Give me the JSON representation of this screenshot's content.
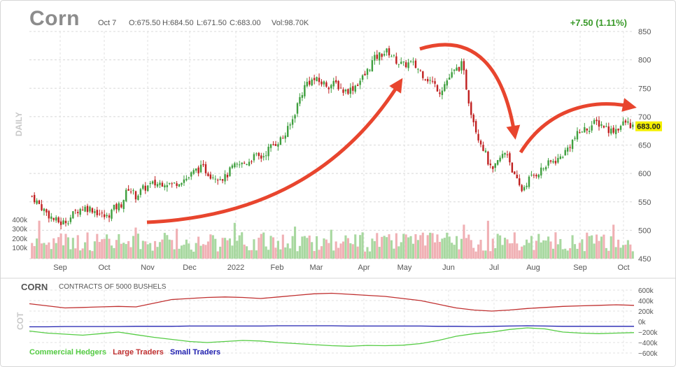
{
  "header": {
    "symbol": "Corn",
    "date": "Oct 7",
    "open": "O:675.50",
    "high": "H:684.50",
    "low": "L:671.50",
    "close": "C:683.00",
    "volume": "Vol:98.70K",
    "change": "+7.50 (1.11%)"
  },
  "labels": {
    "daily": "DAILY",
    "cot": "COT",
    "cot_symbol": "CORN",
    "cot_subtitle": "CONTRACTS OF 5000 BUSHELS"
  },
  "colors": {
    "up": "#3f9f3f",
    "down": "#c02020",
    "vol_up": "#a8d8a0",
    "vol_down": "#f0b0b4",
    "commercial": "#55cc44",
    "large": "#c03030",
    "small": "#2020b0",
    "arrow": "#e8452e",
    "last_price_badge": "#f4f000"
  },
  "chart_data": [
    {
      "type": "candlestick",
      "title": "Corn",
      "y_axis_position": "right",
      "ylim": [
        450,
        850
      ],
      "yticks": [
        "850",
        "800",
        "750",
        "700",
        "650",
        "600",
        "550",
        "500",
        "450"
      ],
      "x_tick_labels": [
        "Sep",
        "Oct",
        "Nov",
        "Dec",
        "2022",
        "Feb",
        "Mar",
        "Apr",
        "May",
        "Jun",
        "Jul",
        "Aug",
        "Sep",
        "Oct"
      ],
      "last_price": "683.00",
      "close_path": [
        [
          "Aug 30",
          560
        ],
        [
          "Sep 5",
          545
        ],
        [
          "Sep 10",
          530
        ],
        [
          "Sep 15",
          518
        ],
        [
          "Sep 20",
          512
        ],
        [
          "Sep 25",
          520
        ],
        [
          "Oct 1",
          535
        ],
        [
          "Oct 5",
          540
        ],
        [
          "Oct 10",
          538
        ],
        [
          "Oct 15",
          530
        ],
        [
          "Oct 20",
          522
        ],
        [
          "Oct 25",
          538
        ],
        [
          "Oct 30",
          545
        ],
        [
          "Nov 5",
          575
        ],
        [
          "Nov 10",
          560
        ],
        [
          "Nov 15",
          573
        ],
        [
          "Nov 20",
          580
        ],
        [
          "Nov 25",
          582
        ],
        [
          "Dec 1",
          585
        ],
        [
          "Dec 6",
          580
        ],
        [
          "Dec 10",
          588
        ],
        [
          "Dec 15",
          592
        ],
        [
          "Dec 20",
          605
        ],
        [
          "Dec 25",
          610
        ],
        [
          "Jan 1",
          598
        ],
        [
          "Jan 6",
          595
        ],
        [
          "Jan 10",
          592
        ],
        [
          "Jan 15",
          610
        ],
        [
          "Jan 20",
          615
        ],
        [
          "Jan 25",
          620
        ],
        [
          "Feb 1",
          630
        ],
        [
          "Feb 5",
          628
        ],
        [
          "Feb 10",
          645
        ],
        [
          "Feb 15",
          655
        ],
        [
          "Feb 20",
          665
        ],
        [
          "Feb 25",
          690
        ],
        [
          "Mar 1",
          730
        ],
        [
          "Mar 5",
          760
        ],
        [
          "Mar 10",
          765
        ],
        [
          "Mar 15",
          760
        ],
        [
          "Mar 20",
          755
        ],
        [
          "Mar 25",
          758
        ],
        [
          "Apr 1",
          745
        ],
        [
          "Apr 5",
          748
        ],
        [
          "Apr 10",
          760
        ],
        [
          "Apr 15",
          775
        ],
        [
          "Apr 20",
          800
        ],
        [
          "Apr 25",
          810
        ],
        [
          "Apr 30",
          815
        ],
        [
          "May 5",
          800
        ],
        [
          "May 10",
          790
        ],
        [
          "May 15",
          795
        ],
        [
          "May 20",
          785
        ],
        [
          "May 25",
          770
        ],
        [
          "Jun 1",
          760
        ],
        [
          "Jun 5",
          745
        ],
        [
          "Jun 10",
          765
        ],
        [
          "Jun 15",
          780
        ],
        [
          "Jun 18",
          792
        ],
        [
          "Jun 25",
          720
        ],
        [
          "Jun 30",
          670
        ],
        [
          "Jul 5",
          640
        ],
        [
          "Jul 10",
          600
        ],
        [
          "Jul 15",
          625
        ],
        [
          "Jul 20",
          640
        ],
        [
          "Jul 25",
          595
        ],
        [
          "Jul 28",
          570
        ],
        [
          "Aug 1",
          590
        ],
        [
          "Aug 5",
          600
        ],
        [
          "Aug 10",
          610
        ],
        [
          "Aug 15",
          620
        ],
        [
          "Aug 20",
          625
        ],
        [
          "Aug 25",
          640
        ],
        [
          "Aug 30",
          660
        ],
        [
          "Sep 5",
          675
        ],
        [
          "Sep 10",
          680
        ],
        [
          "Sep 15",
          690
        ],
        [
          "Sep 20",
          685
        ],
        [
          "Sep 25",
          675
        ],
        [
          "Sep 30",
          680
        ],
        [
          "Oct 3",
          690
        ],
        [
          "Oct 7",
          683
        ]
      ],
      "volume_axis": [
        "400k",
        "300k",
        "200k",
        "100k"
      ],
      "annotations": [
        {
          "type": "arrow",
          "shape": "curve",
          "direction": "up",
          "from": "Nov",
          "to": "Apr"
        },
        {
          "type": "arrow",
          "shape": "curve",
          "direction": "down",
          "from": "May",
          "to": "Jul"
        },
        {
          "type": "arrow",
          "shape": "curve",
          "direction": "right",
          "from": "Aug",
          "to": "Oct"
        }
      ]
    },
    {
      "type": "line",
      "title": "CORN",
      "subtitle": "CONTRACTS OF 5000 BUSHELS",
      "ylim": [
        -600000,
        600000
      ],
      "yticks": [
        "600k",
        "400k",
        "200k",
        "0k",
        "−200k",
        "−400k",
        "−600k"
      ],
      "legend": "bottom-left",
      "series": [
        {
          "name": "Commercial Hedgers",
          "values": [
            -180,
            -220,
            -240,
            -260,
            -230,
            -200,
            -250,
            -300,
            -340,
            -380,
            -400,
            -380,
            -360,
            -370,
            -400,
            -420,
            -440,
            -460,
            -470,
            -455,
            -460,
            -450,
            -420,
            -360,
            -280,
            -230,
            -200,
            -150,
            -120,
            -140,
            -200,
            -220,
            -230,
            -220,
            -210
          ]
        },
        {
          "name": "Large Traders",
          "values": [
            340,
            300,
            260,
            270,
            280,
            290,
            280,
            350,
            420,
            440,
            460,
            470,
            460,
            440,
            470,
            500,
            530,
            540,
            520,
            500,
            480,
            440,
            400,
            330,
            260,
            220,
            200,
            220,
            250,
            270,
            290,
            300,
            310,
            320,
            310
          ]
        },
        {
          "name": "Small Traders",
          "values": [
            -100,
            -100,
            -95,
            -95,
            -95,
            -95,
            -90,
            -90,
            -90,
            -85,
            -85,
            -85,
            -85,
            -85,
            -80,
            -80,
            -80,
            -80,
            -85,
            -85,
            -85,
            -85,
            -85,
            -90,
            -90,
            -95,
            -90,
            -85,
            -80,
            -85,
            -90,
            -90,
            -90,
            -90,
            -90
          ]
        }
      ]
    }
  ]
}
